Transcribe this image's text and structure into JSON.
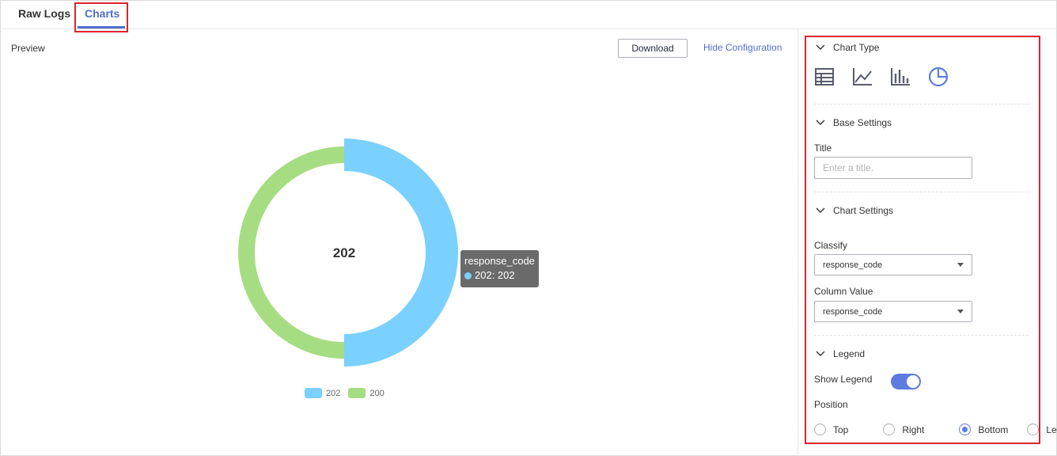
{
  "tabs": {
    "raw_logs": "Raw Logs",
    "charts": "Charts"
  },
  "preview": {
    "label": "Preview",
    "download": "Download",
    "hide_configuration": "Hide Configuration"
  },
  "tooltip": {
    "title": "response_code",
    "row": "202: 202"
  },
  "config": {
    "chart_type": {
      "heading": "Chart Type",
      "icons": [
        "table-icon",
        "line-chart-icon",
        "bar-chart-icon",
        "pie-chart-icon"
      ],
      "selected": "pie-chart-icon"
    },
    "base_settings": {
      "heading": "Base Settings",
      "title_label": "Title",
      "title_placeholder": "Enter a title.",
      "title_value": ""
    },
    "chart_settings": {
      "heading": "Chart Settings",
      "classify_label": "Classify",
      "classify_value": "response_code",
      "column_value_label": "Column Value",
      "column_value_value": "response_code"
    },
    "legend": {
      "heading": "Legend",
      "show_legend_label": "Show Legend",
      "show_legend": true,
      "position_label": "Position",
      "positions": [
        "Top",
        "Right",
        "Bottom",
        "Left"
      ],
      "selected_position": "Bottom"
    }
  },
  "colors": {
    "accent": "#526ecc",
    "highlight": "#d9262c",
    "toggle_on": "#5e7ce0"
  },
  "chart_data": {
    "type": "pie",
    "variant": "donut",
    "center_label": "202",
    "slices": [
      {
        "name": "202",
        "value": 1,
        "color": "#7ad0ff"
      },
      {
        "name": "200",
        "value": 1,
        "color": "#a6dd82"
      }
    ],
    "legend_position": "bottom"
  }
}
